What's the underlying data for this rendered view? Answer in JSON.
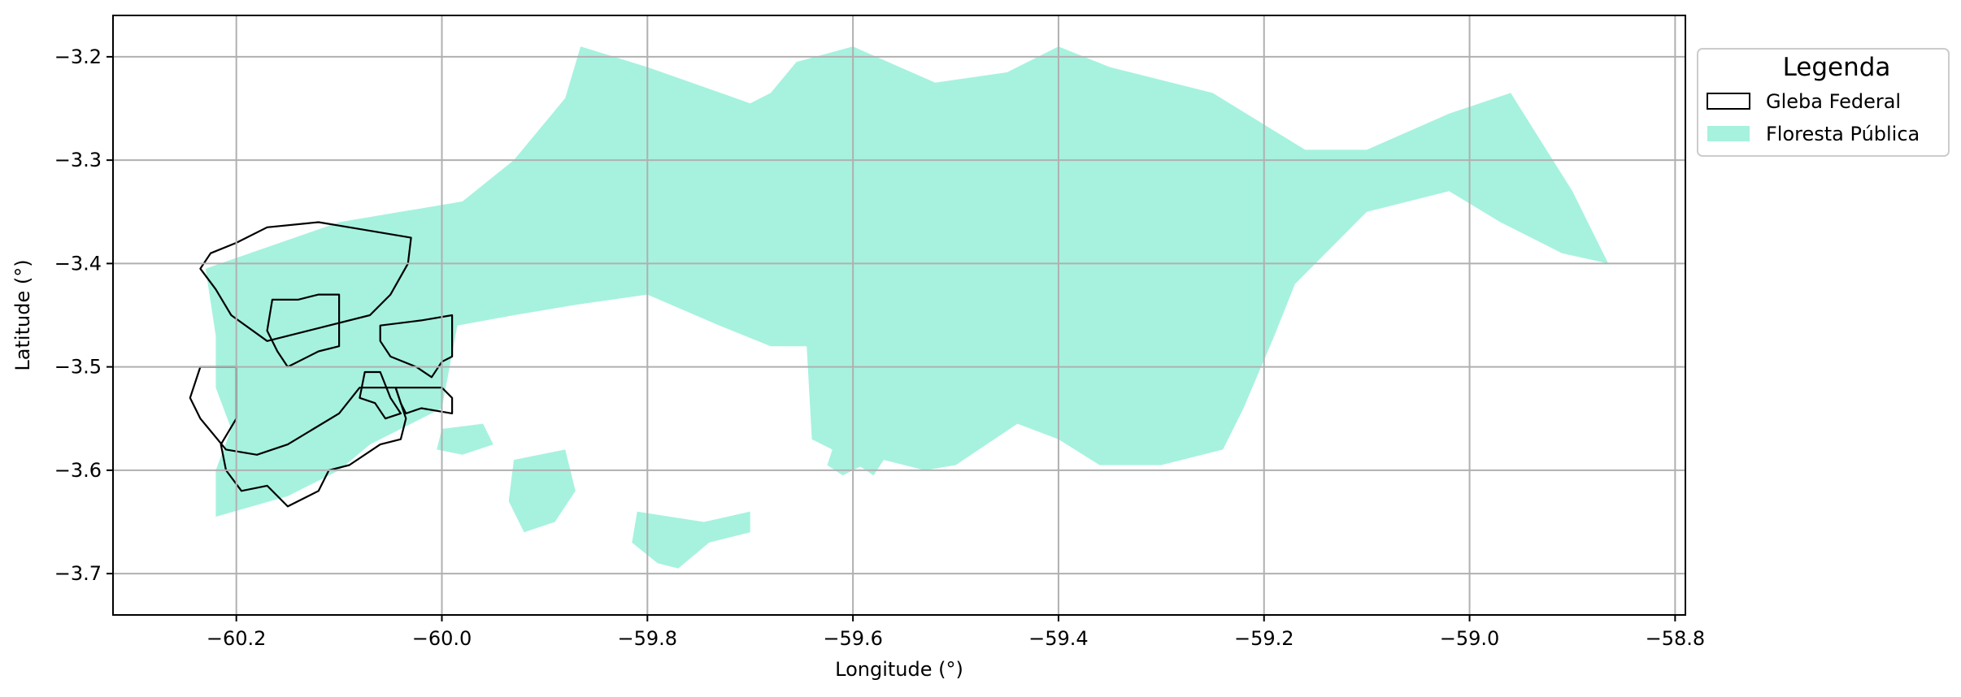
{
  "chart_data": {
    "type": "map",
    "xlabel": "Longitude (°)",
    "ylabel": "Latitude (°)",
    "xlim": [
      -60.32,
      -58.79
    ],
    "ylim": [
      -3.74,
      -3.16
    ],
    "xticks": [
      -60.2,
      -60.0,
      -59.8,
      -59.6,
      -59.4,
      -59.2,
      -59.0,
      -58.8
    ],
    "xtick_labels": [
      "−60.2",
      "−60.0",
      "−59.8",
      "−59.6",
      "−59.4",
      "−59.2",
      "−59.0",
      "−58.8"
    ],
    "yticks": [
      -3.2,
      -3.3,
      -3.4,
      -3.5,
      -3.6,
      -3.7
    ],
    "ytick_labels": [
      "−3.2",
      "−3.3",
      "−3.4",
      "−3.5",
      "−3.6",
      "−3.7"
    ],
    "grid": true,
    "legend": {
      "title": "Legenda",
      "placement": "outside-upper-right",
      "entries": [
        {
          "label": "Gleba Federal",
          "style": "outline",
          "color": "#000000"
        },
        {
          "label": "Floresta Pública",
          "style": "fill",
          "color": "#a6f2de"
        }
      ]
    },
    "layers": {
      "floresta_publica_color": "#a6f2de",
      "gleba_federal_color": "#000000",
      "floresta_publica_main": [
        [
          -60.23,
          -3.405
        ],
        [
          -60.1,
          -3.36
        ],
        [
          -59.98,
          -3.34
        ],
        [
          -59.93,
          -3.3
        ],
        [
          -59.88,
          -3.24
        ],
        [
          -59.865,
          -3.19
        ],
        [
          -59.8,
          -3.21
        ],
        [
          -59.7,
          -3.245
        ],
        [
          -59.68,
          -3.235
        ],
        [
          -59.655,
          -3.205
        ],
        [
          -59.6,
          -3.19
        ],
        [
          -59.52,
          -3.225
        ],
        [
          -59.45,
          -3.215
        ],
        [
          -59.4,
          -3.19
        ],
        [
          -59.35,
          -3.21
        ],
        [
          -59.25,
          -3.235
        ],
        [
          -59.16,
          -3.29
        ],
        [
          -59.1,
          -3.29
        ],
        [
          -59.02,
          -3.255
        ],
        [
          -58.96,
          -3.235
        ],
        [
          -58.9,
          -3.33
        ],
        [
          -58.865,
          -3.4
        ],
        [
          -58.91,
          -3.39
        ],
        [
          -58.97,
          -3.36
        ],
        [
          -59.02,
          -3.33
        ],
        [
          -59.1,
          -3.35
        ],
        [
          -59.17,
          -3.42
        ],
        [
          -59.19,
          -3.47
        ],
        [
          -59.22,
          -3.54
        ],
        [
          -59.24,
          -3.58
        ],
        [
          -59.3,
          -3.595
        ],
        [
          -59.36,
          -3.595
        ],
        [
          -59.4,
          -3.57
        ],
        [
          -59.44,
          -3.555
        ],
        [
          -59.47,
          -3.575
        ],
        [
          -59.5,
          -3.595
        ],
        [
          -59.53,
          -3.6
        ],
        [
          -59.57,
          -3.59
        ],
        [
          -59.58,
          -3.605
        ],
        [
          -59.61,
          -3.585
        ],
        [
          -59.64,
          -3.57
        ],
        [
          -59.645,
          -3.48
        ],
        [
          -59.68,
          -3.48
        ],
        [
          -59.73,
          -3.46
        ],
        [
          -59.8,
          -3.43
        ],
        [
          -59.87,
          -3.44
        ],
        [
          -59.93,
          -3.45
        ],
        [
          -59.985,
          -3.46
        ],
        [
          -60.0,
          -3.54
        ],
        [
          -60.07,
          -3.575
        ],
        [
          -60.1,
          -3.6
        ],
        [
          -60.15,
          -3.625
        ],
        [
          -60.22,
          -3.645
        ],
        [
          -60.22,
          -3.6
        ],
        [
          -60.205,
          -3.56
        ],
        [
          -60.22,
          -3.52
        ],
        [
          -60.22,
          -3.47
        ]
      ],
      "floresta_publica_patches": [
        [
          [
            -59.81,
            -3.64
          ],
          [
            -59.745,
            -3.65
          ],
          [
            -59.7,
            -3.64
          ],
          [
            -59.7,
            -3.66
          ],
          [
            -59.74,
            -3.67
          ],
          [
            -59.77,
            -3.695
          ],
          [
            -59.79,
            -3.69
          ],
          [
            -59.815,
            -3.67
          ]
        ],
        [
          [
            -59.93,
            -3.59
          ],
          [
            -59.88,
            -3.58
          ],
          [
            -59.87,
            -3.62
          ],
          [
            -59.89,
            -3.65
          ],
          [
            -59.92,
            -3.66
          ],
          [
            -59.935,
            -3.63
          ]
        ],
        [
          [
            -60.0,
            -3.56
          ],
          [
            -59.96,
            -3.555
          ],
          [
            -59.95,
            -3.575
          ],
          [
            -59.98,
            -3.585
          ],
          [
            -60.005,
            -3.58
          ]
        ],
        [
          [
            -59.62,
            -3.58
          ],
          [
            -59.6,
            -3.58
          ],
          [
            -59.59,
            -3.595
          ],
          [
            -59.61,
            -3.605
          ],
          [
            -59.625,
            -3.595
          ]
        ]
      ],
      "gleba_federal_outlines": [
        [
          [
            -60.225,
            -3.39
          ],
          [
            -60.2,
            -3.38
          ],
          [
            -60.17,
            -3.365
          ],
          [
            -60.12,
            -3.36
          ],
          [
            -60.09,
            -3.365
          ],
          [
            -60.03,
            -3.375
          ],
          [
            -60.033,
            -3.4
          ],
          [
            -60.05,
            -3.43
          ],
          [
            -60.07,
            -3.45
          ],
          [
            -60.15,
            -3.47
          ],
          [
            -60.17,
            -3.475
          ],
          [
            -60.205,
            -3.45
          ],
          [
            -60.22,
            -3.425
          ],
          [
            -60.235,
            -3.405
          ]
        ],
        [
          [
            -60.165,
            -3.435
          ],
          [
            -60.14,
            -3.435
          ],
          [
            -60.12,
            -3.43
          ],
          [
            -60.1,
            -3.43
          ],
          [
            -60.1,
            -3.48
          ],
          [
            -60.12,
            -3.485
          ],
          [
            -60.15,
            -3.5
          ],
          [
            -60.16,
            -3.485
          ],
          [
            -60.17,
            -3.465
          ]
        ],
        [
          [
            -60.01,
            -3.51
          ],
          [
            -60.0,
            -3.495
          ],
          [
            -59.99,
            -3.49
          ],
          [
            -59.99,
            -3.45
          ],
          [
            -60.02,
            -3.455
          ],
          [
            -60.06,
            -3.46
          ],
          [
            -60.06,
            -3.475
          ],
          [
            -60.05,
            -3.49
          ],
          [
            -60.025,
            -3.5
          ]
        ],
        [
          [
            -60.235,
            -3.5
          ],
          [
            -60.2,
            -3.5
          ],
          [
            -60.2,
            -3.55
          ],
          [
            -60.215,
            -3.575
          ],
          [
            -60.21,
            -3.6
          ],
          [
            -60.195,
            -3.62
          ],
          [
            -60.17,
            -3.615
          ],
          [
            -60.15,
            -3.635
          ],
          [
            -60.12,
            -3.62
          ],
          [
            -60.11,
            -3.6
          ],
          [
            -60.09,
            -3.595
          ],
          [
            -60.06,
            -3.575
          ],
          [
            -60.04,
            -3.57
          ],
          [
            -60.035,
            -3.55
          ],
          [
            -60.045,
            -3.52
          ],
          [
            -60.08,
            -3.52
          ],
          [
            -60.1,
            -3.545
          ],
          [
            -60.125,
            -3.56
          ],
          [
            -60.15,
            -3.575
          ],
          [
            -60.18,
            -3.585
          ],
          [
            -60.21,
            -3.58
          ],
          [
            -60.235,
            -3.55
          ],
          [
            -60.245,
            -3.53
          ]
        ],
        [
          [
            -60.075,
            -3.505
          ],
          [
            -60.06,
            -3.505
          ],
          [
            -60.05,
            -3.53
          ],
          [
            -60.04,
            -3.545
          ],
          [
            -60.055,
            -3.55
          ],
          [
            -60.065,
            -3.535
          ],
          [
            -60.08,
            -3.53
          ]
        ],
        [
          [
            -60.045,
            -3.52
          ],
          [
            -60.0,
            -3.52
          ],
          [
            -59.99,
            -3.53
          ],
          [
            -59.99,
            -3.545
          ],
          [
            -60.02,
            -3.54
          ],
          [
            -60.035,
            -3.545
          ],
          [
            -60.04,
            -3.535
          ]
        ]
      ]
    }
  }
}
